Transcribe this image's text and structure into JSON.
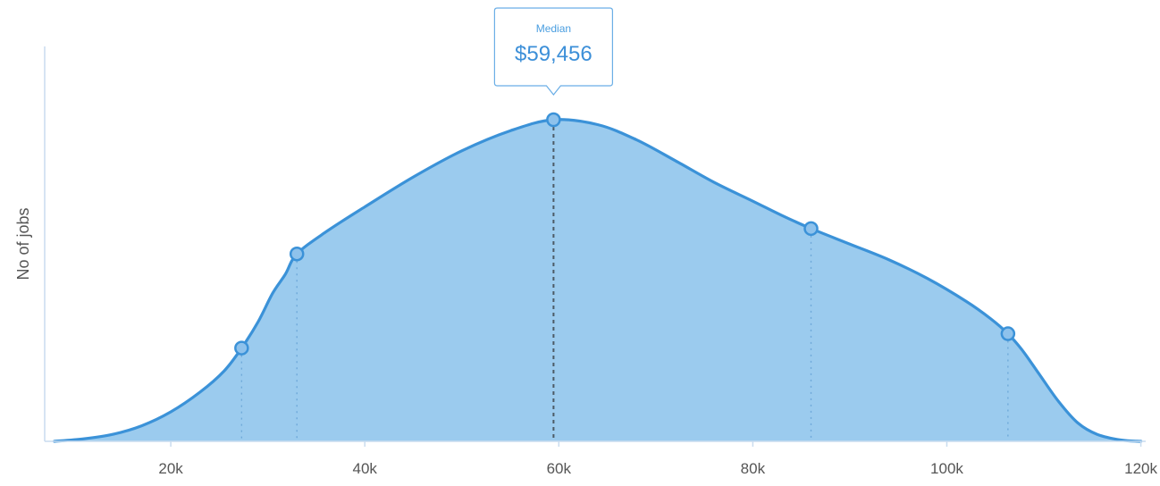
{
  "chart_data": {
    "type": "area",
    "xlabel": "",
    "ylabel": "No of jobs",
    "xlim": [
      7000,
      120500
    ],
    "ylim": [
      0,
      1
    ],
    "x_ticks": [
      20000,
      40000,
      60000,
      80000,
      100000,
      120000
    ],
    "x_tick_labels": [
      "20k",
      "40k",
      "60k",
      "80k",
      "100k",
      "120k"
    ],
    "grid": false,
    "legend": "none",
    "series": [
      {
        "color": "#3b92d8",
        "fill_color": "#9bcbee",
        "x": [
          8000,
          11000,
          14000,
          17000,
          20000,
          23000,
          25500,
          27300,
          29000,
          30500,
          31800,
          33000,
          36000,
          40000,
          45000,
          50000,
          55000,
          59456,
          64000,
          68000,
          72000,
          76000,
          80000,
          83000,
          86000,
          90000,
          94000,
          98000,
          102000,
          104500,
          106300,
          107800,
          109500,
          111500,
          113500,
          115500,
          118000,
          120000
        ],
        "y": [
          0.0,
          0.006,
          0.017,
          0.038,
          0.072,
          0.12,
          0.172,
          0.228,
          0.292,
          0.362,
          0.408,
          0.458,
          0.512,
          0.573,
          0.646,
          0.71,
          0.759,
          0.786,
          0.774,
          0.737,
          0.686,
          0.633,
          0.587,
          0.552,
          0.52,
          0.482,
          0.444,
          0.398,
          0.342,
          0.3,
          0.263,
          0.222,
          0.165,
          0.098,
          0.045,
          0.017,
          0.003,
          0.0
        ]
      }
    ],
    "markers": [
      {
        "x": 27300,
        "y": 0.228
      },
      {
        "x": 33000,
        "y": 0.458
      },
      {
        "x": 59456,
        "y": 0.786
      },
      {
        "x": 86000,
        "y": 0.52
      },
      {
        "x": 106300,
        "y": 0.263
      }
    ],
    "annotation": {
      "title": "Median",
      "value": "$59,456",
      "x": 59456
    }
  }
}
